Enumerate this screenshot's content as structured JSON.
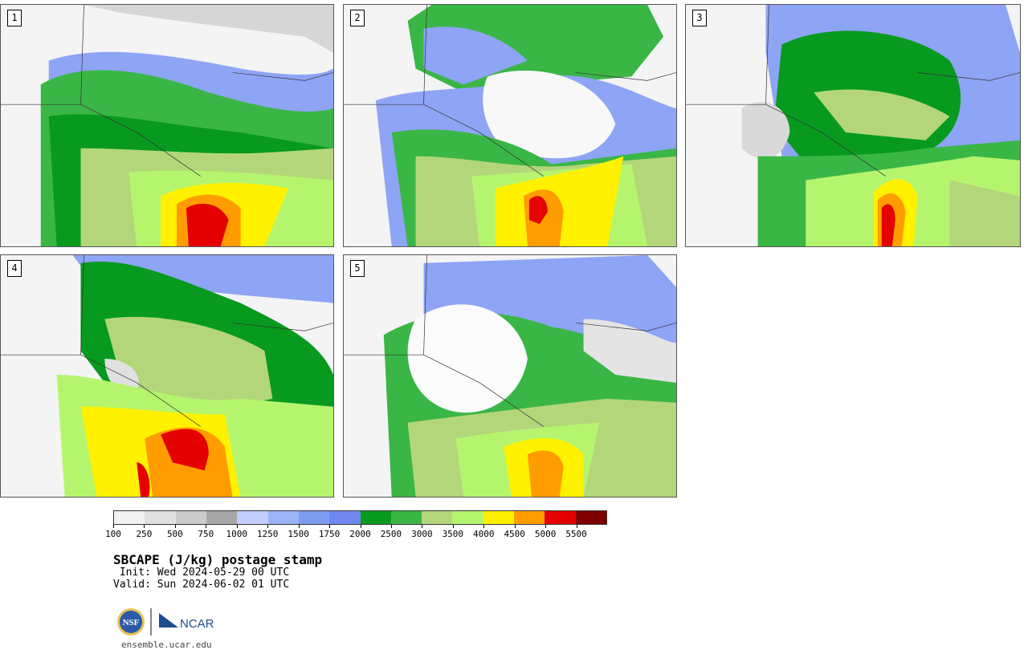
{
  "panels": [
    {
      "number": "1"
    },
    {
      "number": "2"
    },
    {
      "number": "3"
    },
    {
      "number": "4"
    },
    {
      "number": "5"
    }
  ],
  "colorbar": {
    "colors": [
      "#f2f2f2",
      "#e0e0e0",
      "#cbcbcb",
      "#a8a8a8",
      "#c2cdfc",
      "#9bb4f7",
      "#7f9cf3",
      "#7188f0",
      "#079a1f",
      "#3ab646",
      "#b4d67b",
      "#b5f56e",
      "#fff100",
      "#ff9d00",
      "#e50000",
      "#7f0000"
    ],
    "tick_labels": [
      "100",
      "250",
      "500",
      "750",
      "1000",
      "1250",
      "1500",
      "1750",
      "2000",
      "2500",
      "3000",
      "3500",
      "4000",
      "4500",
      "5000",
      "5500"
    ]
  },
  "title": "SBCAPE (J/kg) postage stamp",
  "init": " Init: Wed 2024-05-29 00 UTC",
  "valid": "Valid: Sun 2024-06-02 01 UTC",
  "logos": {
    "nsf": "NSF",
    "ncar": "NCAR"
  },
  "url": "ensemble.ucar.edu"
}
